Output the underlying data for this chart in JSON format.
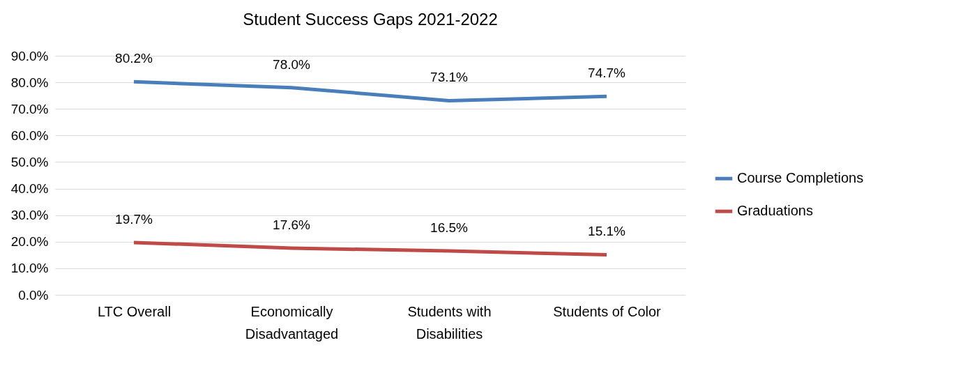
{
  "chart_data": {
    "type": "line",
    "title": "Student Success Gaps 2021-2022",
    "categories": [
      "LTC Overall",
      "Economically Disadvantaged",
      "Students with Disabilities",
      "Students of Color"
    ],
    "series": [
      {
        "name": "Course Completions",
        "color": "#4a7ebb",
        "values": [
          80.2,
          78.0,
          73.1,
          74.7
        ],
        "value_labels": [
          "80.2%",
          "78.0%",
          "73.1%",
          "74.7%"
        ]
      },
      {
        "name": "Graduations",
        "color": "#be4b48",
        "values": [
          19.7,
          17.6,
          16.5,
          15.1
        ],
        "value_labels": [
          "19.7%",
          "17.6%",
          "16.5%",
          "15.1%"
        ]
      }
    ],
    "ylim": [
      0,
      90
    ],
    "yticks": [
      {
        "value": 0,
        "label": "0.0%"
      },
      {
        "value": 10,
        "label": "10.0%"
      },
      {
        "value": 20,
        "label": "20.0%"
      },
      {
        "value": 30,
        "label": "30.0%"
      },
      {
        "value": 40,
        "label": "40.0%"
      },
      {
        "value": 50,
        "label": "50.0%"
      },
      {
        "value": 60,
        "label": "60.0%"
      },
      {
        "value": 70,
        "label": "70.0%"
      },
      {
        "value": 80,
        "label": "80.0%"
      },
      {
        "value": 90,
        "label": "90.0%"
      }
    ],
    "grid": "y",
    "legend": "right",
    "marker": "none",
    "line_style": "solid"
  }
}
